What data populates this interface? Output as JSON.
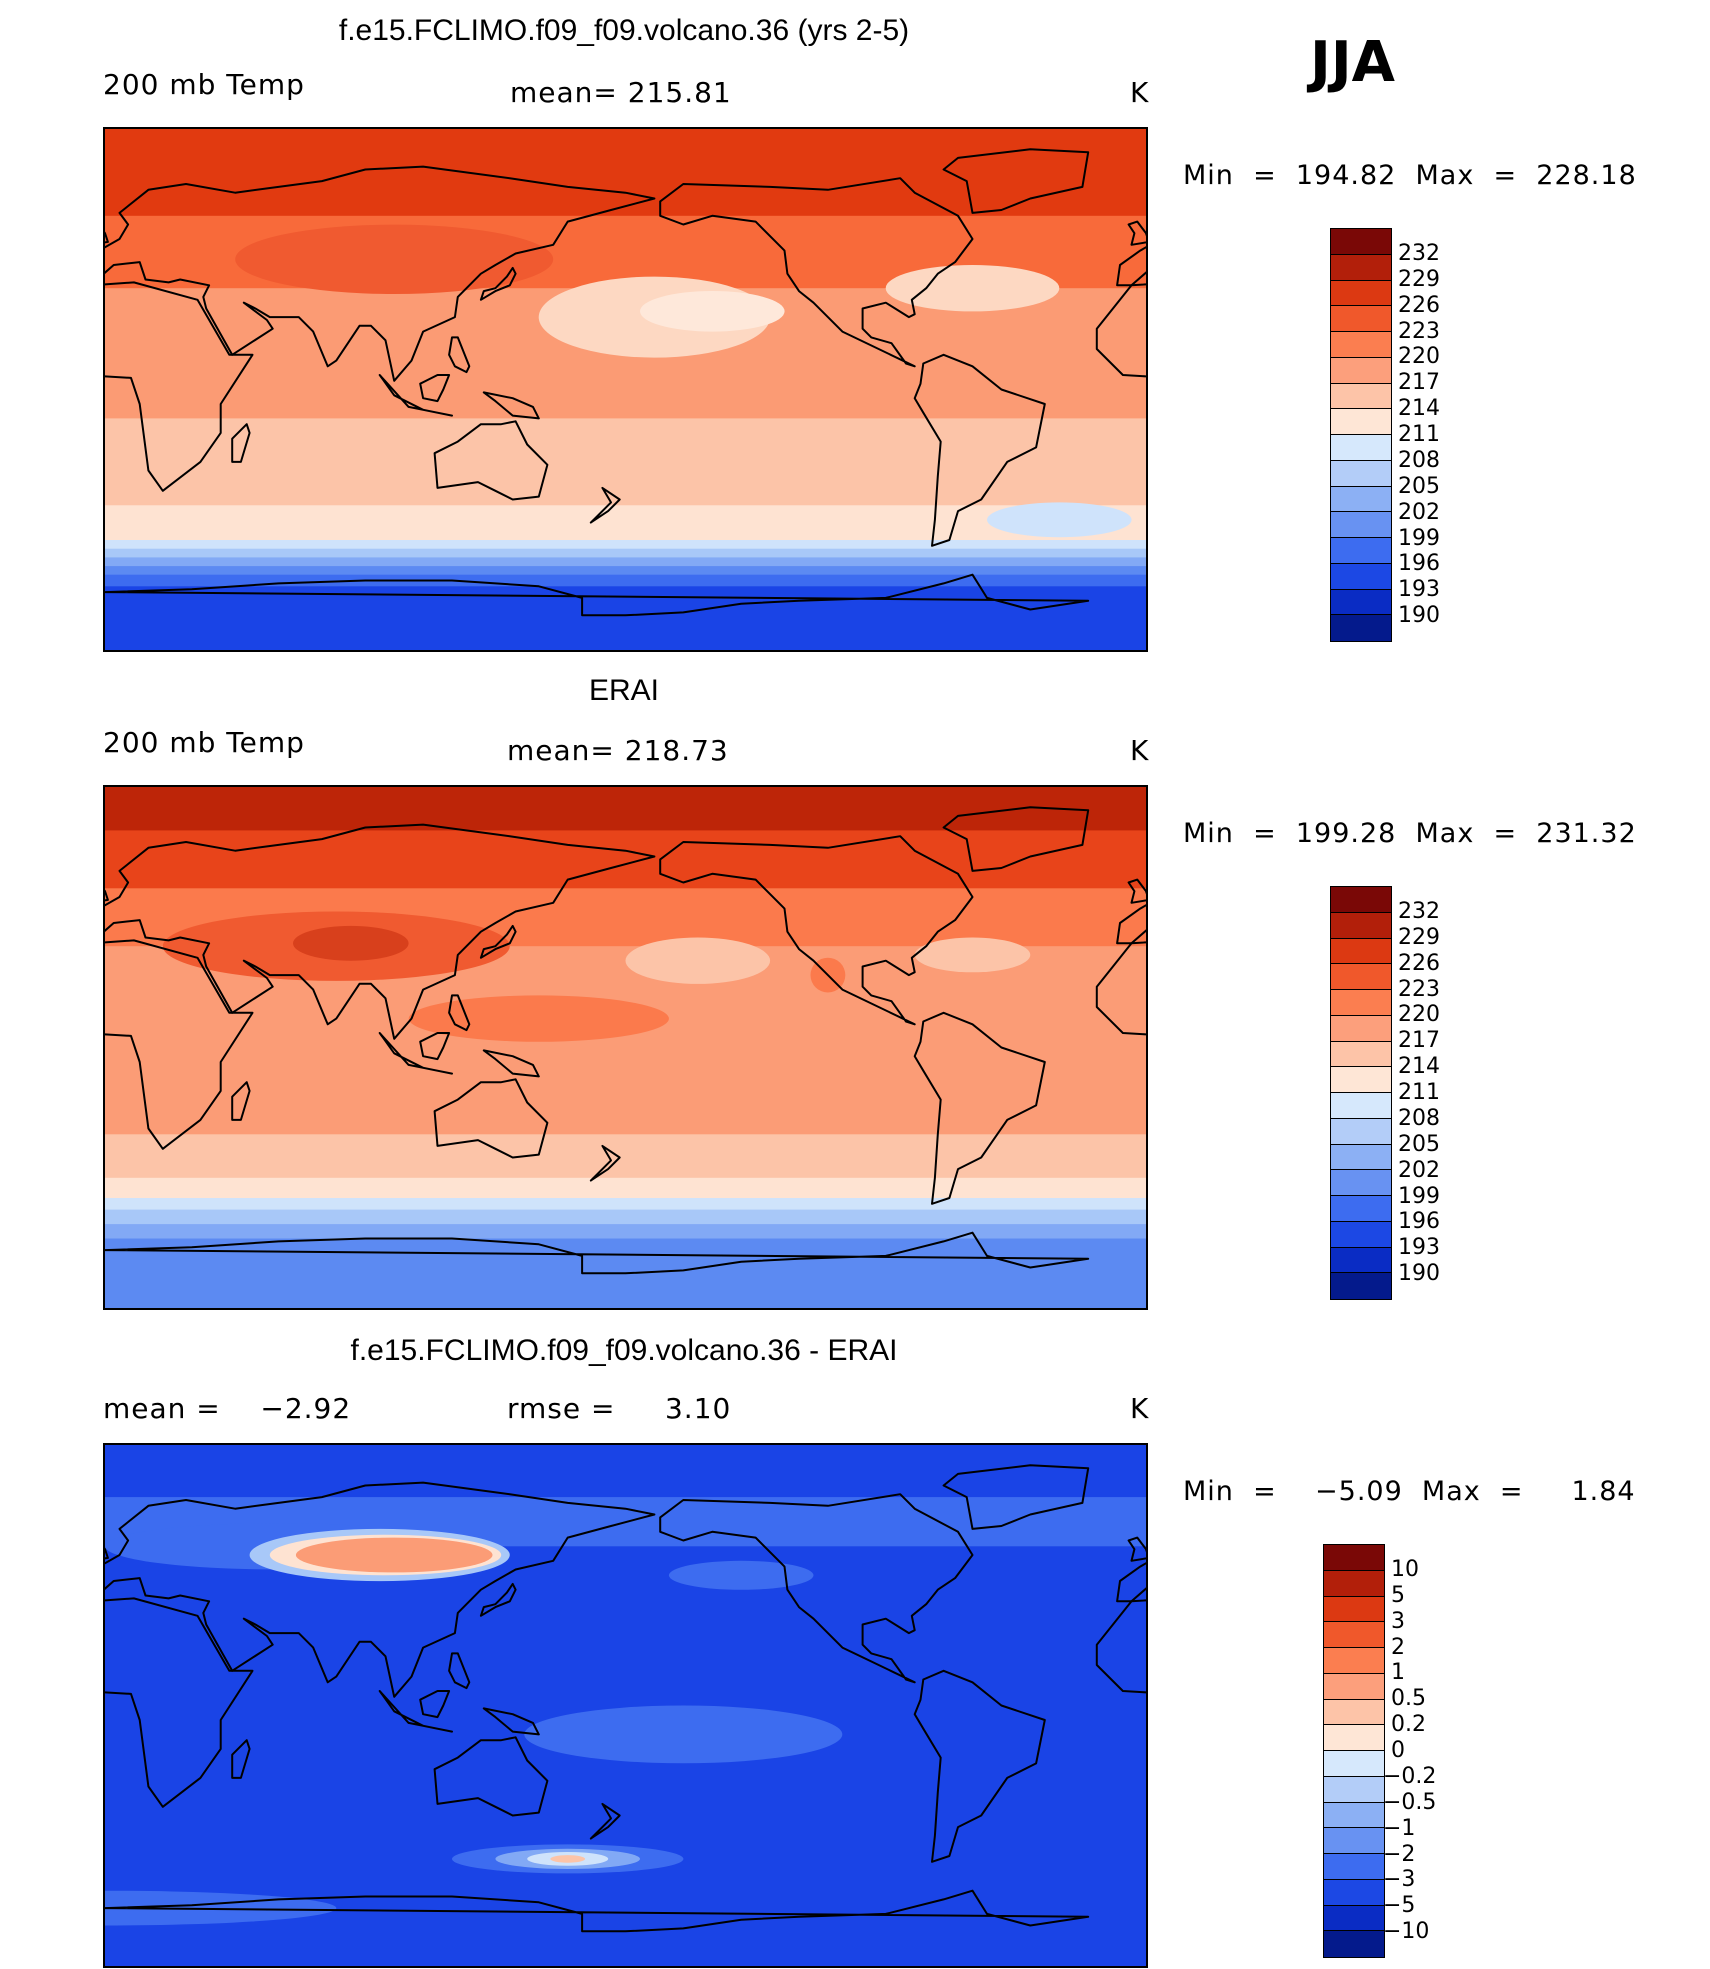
{
  "season": "JJA",
  "panels": [
    {
      "title": "f.e15.FCLIMO.f09_f09.volcano.36 (yrs 2-5)",
      "left_label": "200 mb Temp",
      "center_label": "mean=  215.81",
      "units": "K",
      "minmax": "Min  =  194.82  Max  =  228.18",
      "palette": "temp",
      "legend_labels": [
        "232",
        "229",
        "226",
        "223",
        "220",
        "217",
        "214",
        "211",
        "208",
        "205",
        "202",
        "199",
        "196",
        "193",
        "190"
      ],
      "bands": [
        {
          "lat": [
            60,
            90
          ],
          "c": "#e13a10"
        },
        {
          "lat": [
            35,
            60
          ],
          "c": "#f86a3a"
        },
        {
          "lat": [
            -10,
            35
          ],
          "c": "#fb9b74"
        },
        {
          "lat": [
            -40,
            -10
          ],
          "c": "#fcc4a8"
        },
        {
          "lat": [
            -52,
            -40
          ],
          "c": "#fee3d2"
        },
        {
          "lat": [
            -55,
            -52
          ],
          "c": "#cfe3fb"
        },
        {
          "lat": [
            -58,
            -55
          ],
          "c": "#a8c8f8"
        },
        {
          "lat": [
            -61,
            -58
          ],
          "c": "#82a9f5"
        },
        {
          "lat": [
            -64,
            -61
          ],
          "c": "#5c8af2"
        },
        {
          "lat": [
            -68,
            -64
          ],
          "c": "#3d6cf0"
        },
        {
          "lat": [
            -90,
            -68
          ],
          "c": "#1a44e6"
        }
      ],
      "blobs": [
        {
          "lon": 100,
          "lat": 45,
          "rlon": 55,
          "rlat": 12,
          "c": "#f05a30"
        },
        {
          "lon": 190,
          "lat": 25,
          "rlon": 40,
          "rlat": 14,
          "c": "#fdd8c2"
        },
        {
          "lon": 210,
          "lat": 27,
          "rlon": 25,
          "rlat": 7,
          "c": "#fee8da"
        },
        {
          "lon": 300,
          "lat": 35,
          "rlon": 30,
          "rlat": 8,
          "c": "#fdd8c2"
        },
        {
          "lon": 200,
          "lat": -25,
          "rlon": 60,
          "rlat": 10,
          "c": "#fcc4a8"
        },
        {
          "lon": 330,
          "lat": -45,
          "rlon": 25,
          "rlat": 6,
          "c": "#cfe3fb"
        }
      ]
    },
    {
      "title": "ERAI",
      "left_label": "200 mb Temp",
      "center_label": "mean=  218.73",
      "units": "K",
      "minmax": "Min  =  199.28  Max  =  231.32",
      "palette": "temp",
      "legend_labels": [
        "232",
        "229",
        "226",
        "223",
        "220",
        "217",
        "214",
        "211",
        "208",
        "205",
        "202",
        "199",
        "196",
        "193",
        "190"
      ],
      "bands": [
        {
          "lat": [
            75,
            90
          ],
          "c": "#bd2508"
        },
        {
          "lat": [
            55,
            75
          ],
          "c": "#e8441a"
        },
        {
          "lat": [
            35,
            55
          ],
          "c": "#fb7a4c"
        },
        {
          "lat": [
            -30,
            35
          ],
          "c": "#fb9c76"
        },
        {
          "lat": [
            -45,
            -30
          ],
          "c": "#fcc4a8"
        },
        {
          "lat": [
            -52,
            -45
          ],
          "c": "#fee3d2"
        },
        {
          "lat": [
            -56,
            -52
          ],
          "c": "#cfe3fb"
        },
        {
          "lat": [
            -61,
            -56
          ],
          "c": "#a8c8f8"
        },
        {
          "lat": [
            -66,
            -61
          ],
          "c": "#82a9f5"
        },
        {
          "lat": [
            -90,
            -66
          ],
          "c": "#5c8af2"
        }
      ],
      "blobs": [
        {
          "lon": 80,
          "lat": 35,
          "rlon": 60,
          "rlat": 12,
          "c": "#f05a30"
        },
        {
          "lon": 85,
          "lat": 36,
          "rlon": 20,
          "rlat": 6,
          "c": "#d8401c"
        },
        {
          "lon": 150,
          "lat": 10,
          "rlon": 45,
          "rlat": 8,
          "c": "#fb7a4c"
        },
        {
          "lon": 205,
          "lat": 30,
          "rlon": 25,
          "rlat": 8,
          "c": "#fcc4a8"
        },
        {
          "lon": 300,
          "lat": 32,
          "rlon": 20,
          "rlat": 6,
          "c": "#fcc4a8"
        },
        {
          "lon": 250,
          "lat": 25,
          "rlon": 6,
          "rlat": 6,
          "c": "#fb7a4c"
        }
      ]
    },
    {
      "title": "f.e15.FCLIMO.f09_f09.volcano.36 - ERAI",
      "left_label": "mean =    −2.92",
      "center_label": "rmse =     3.10",
      "units": "K",
      "minmax": "Min  =    −5.09  Max  =     1.84",
      "palette": "diff",
      "legend_labels": [
        "10",
        "5",
        "3",
        "2",
        "1",
        "0.5",
        "0.2",
        "0",
        "−0.2",
        "−0.5",
        "−1",
        "−2",
        "−3",
        "−5",
        "−10"
      ],
      "bands": [
        {
          "lat": [
            72,
            90
          ],
          "c": "#1a44e6"
        },
        {
          "lat": [
            55,
            72
          ],
          "c": "#3d6cf0"
        },
        {
          "lat": [
            -90,
            55
          ],
          "c": "#1a44e6"
        }
      ],
      "blobs": [
        {
          "lon": 60,
          "lat": 55,
          "rlon": 60,
          "rlat": 8,
          "c": "#3d6cf0"
        },
        {
          "lon": 95,
          "lat": 52,
          "rlon": 45,
          "rlat": 9,
          "c": "#a8c8f8"
        },
        {
          "lon": 97,
          "lat": 52,
          "rlon": 40,
          "rlat": 7,
          "c": "#fee3d2"
        },
        {
          "lon": 100,
          "lat": 52,
          "rlon": 34,
          "rlat": 6,
          "c": "#fb9c76"
        },
        {
          "lon": 200,
          "lat": -10,
          "rlon": 55,
          "rlat": 10,
          "c": "#3d6cf0"
        },
        {
          "lon": 220,
          "lat": 45,
          "rlon": 25,
          "rlat": 5,
          "c": "#3d6cf0"
        },
        {
          "lon": 160,
          "lat": -53,
          "rlon": 40,
          "rlat": 5,
          "c": "#3d6cf0"
        },
        {
          "lon": 160,
          "lat": -53,
          "rlon": 25,
          "rlat": 3.5,
          "c": "#82a9f5"
        },
        {
          "lon": 160,
          "lat": -53,
          "rlon": 14,
          "rlat": 2.4,
          "c": "#cfe3fb"
        },
        {
          "lon": 160,
          "lat": -53,
          "rlon": 6,
          "rlat": 1.3,
          "c": "#fcc4a8"
        },
        {
          "lon": 0,
          "lat": -70,
          "rlon": 80,
          "rlat": 6,
          "c": "#3d6cf0"
        }
      ]
    }
  ],
  "palettes": {
    "temp": [
      "#7a0806",
      "#b21f0a",
      "#dc3912",
      "#f0582b",
      "#fb7e50",
      "#fc9f7c",
      "#fdc4a8",
      "#fee6d6",
      "#d6e8fc",
      "#b3cdf8",
      "#8cb0f4",
      "#6892f2",
      "#3d6cf0",
      "#1c48e4",
      "#0a2cc4",
      "#041a8c"
    ],
    "diff": [
      "#7a0806",
      "#b21f0a",
      "#dc3912",
      "#f0582b",
      "#fb7e50",
      "#fc9f7c",
      "#fdc4a8",
      "#fee6d6",
      "#d6e8fc",
      "#b3cdf8",
      "#8cb0f4",
      "#6892f2",
      "#3d6cf0",
      "#1c48e4",
      "#0a2cc4",
      "#041a8c"
    ]
  }
}
